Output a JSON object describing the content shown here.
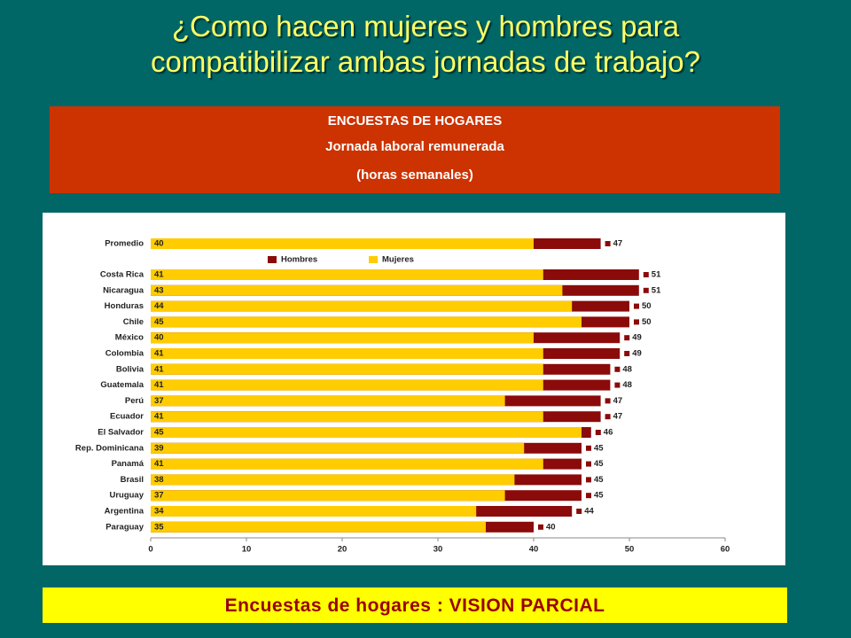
{
  "slide_title": [
    "¿Como hacen mujeres y  hombres para",
    "compatibilizar ambas jornadas de trabajo?"
  ],
  "header_box": [
    "ENCUESTAS DE HOGARES",
    "Jornada laboral remunerada",
    "(horas semanales)"
  ],
  "footer": "Encuestas de hogares : VISION PARCIAL",
  "chart_data": {
    "type": "bar",
    "orientation": "horizontal",
    "overlap": true,
    "categories": [
      "Promedio",
      "Costa Rica",
      "Nicaragua",
      "Honduras",
      "Chile",
      "México",
      "Colombia",
      "Bolivia",
      "Guatemala",
      "Perú",
      "Ecuador",
      "El Salvador",
      "Rep. Dominicana",
      "Panamá",
      "Brasil",
      "Uruguay",
      "Argentina",
      "Paraguay"
    ],
    "series": [
      {
        "name": "Hombres",
        "color": "#8b0a0a",
        "values": [
          47,
          51,
          51,
          50,
          50,
          49,
          49,
          48,
          48,
          47,
          47,
          46,
          45,
          45,
          45,
          45,
          44,
          40
        ]
      },
      {
        "name": "Mujeres",
        "color": "#ffcc00",
        "values": [
          40,
          41,
          43,
          44,
          45,
          40,
          41,
          41,
          41,
          37,
          41,
          45,
          39,
          41,
          38,
          37,
          34,
          35
        ]
      }
    ],
    "xlim": [
      0,
      60
    ],
    "xticks": [
      0,
      10,
      20,
      30,
      40,
      50,
      60
    ],
    "grid": false
  }
}
